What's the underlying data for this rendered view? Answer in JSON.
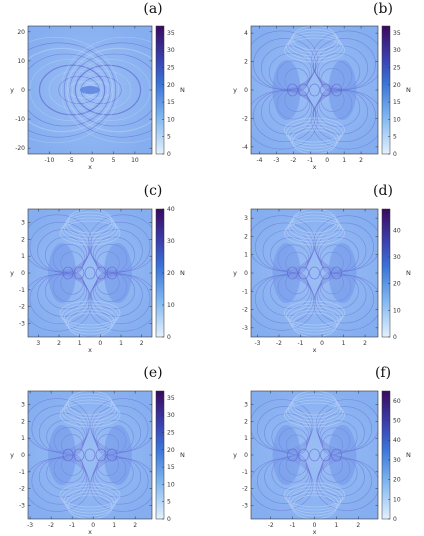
{
  "chart_data": [
    {
      "type": "heatmap",
      "panel_label": "(a)",
      "xlabel": "x",
      "ylabel": "y",
      "xlim": [
        -15,
        14
      ],
      "ylim": [
        -22,
        22
      ],
      "xticks": [
        -10,
        -5,
        0,
        5,
        10
      ],
      "yticks": [
        -20,
        -10,
        0,
        10,
        20
      ],
      "colorbar": {
        "label": "N",
        "min": 0,
        "max": 37,
        "ticks": [
          0,
          5,
          10,
          15,
          20,
          25,
          30,
          35
        ]
      }
    },
    {
      "type": "heatmap",
      "panel_label": "(b)",
      "xlabel": "x",
      "ylabel": "y",
      "xlim": [
        -4.5,
        3
      ],
      "ylim": [
        -4.5,
        4.5
      ],
      "xticks": [
        -4,
        -3,
        -2,
        -1,
        0,
        1,
        2
      ],
      "yticks": [
        -4,
        -2,
        0,
        2,
        4
      ],
      "colorbar": {
        "label": "N",
        "min": 0,
        "max": 37,
        "ticks": [
          0,
          5,
          10,
          15,
          20,
          25,
          30,
          35
        ]
      }
    },
    {
      "type": "heatmap",
      "panel_label": "(c)",
      "xlabel": "x",
      "ylabel": "y",
      "xlim": [
        -3.5,
        2.5
      ],
      "ylim": [
        -3.8,
        3.8
      ],
      "xticks": [
        -3,
        -2,
        -1,
        0,
        1,
        2
      ],
      "xticklabels": [
        "3",
        "2",
        "1",
        "0",
        "1",
        "2"
      ],
      "yticks": [
        -3,
        -2,
        -1,
        0,
        1,
        2,
        3
      ],
      "colorbar": {
        "label": "N",
        "min": 0,
        "max": 40,
        "ticks": [
          0,
          10,
          20,
          30,
          40
        ]
      }
    },
    {
      "type": "heatmap",
      "panel_label": "(d)",
      "xlabel": "x",
      "ylabel": "y",
      "xlim": [
        -3.3,
        2.6
      ],
      "ylim": [
        -3.5,
        3.5
      ],
      "xticks": [
        -3,
        -2,
        -1,
        0,
        1,
        2
      ],
      "yticks": [
        -3,
        -2,
        -1,
        0,
        1,
        2,
        3
      ],
      "colorbar": {
        "label": "N",
        "min": 0,
        "max": 48,
        "ticks": [
          0,
          10,
          20,
          30,
          40
        ]
      }
    },
    {
      "type": "heatmap",
      "panel_label": "(e)",
      "xlabel": "x",
      "ylabel": "y",
      "xlim": [
        -3.1,
        2.8
      ],
      "ylim": [
        -3.8,
        3.8
      ],
      "xticks": [
        -3,
        -2,
        -1,
        0,
        1,
        2
      ],
      "yticks": [
        -3,
        -2,
        -1,
        0,
        1,
        2,
        3
      ],
      "colorbar": {
        "label": "N",
        "min": 0,
        "max": 37,
        "ticks": [
          0,
          5,
          10,
          15,
          20,
          25,
          30,
          35
        ]
      }
    },
    {
      "type": "heatmap",
      "panel_label": "(f)",
      "xlabel": "x",
      "ylabel": "y",
      "xlim": [
        -2.9,
        2.9
      ],
      "ylim": [
        -3.8,
        3.8
      ],
      "xticks": [
        -2,
        -1,
        0,
        1,
        2
      ],
      "yticks": [
        -3,
        -2,
        -1,
        0,
        1,
        2,
        3
      ],
      "colorbar": {
        "label": "N",
        "min": 0,
        "max": 65,
        "ticks": [
          0,
          10,
          20,
          30,
          40,
          50,
          60
        ]
      }
    }
  ],
  "colors": {
    "background_field": "#8fb6f2",
    "field_light": "#b8d2f8",
    "field_dark": "#4f6fd8",
    "ridge": "#5a55c8",
    "colormap_low": "#d9ecfd",
    "colormap_mid": "#3c82e0",
    "colormap_high": "#3d0a63"
  }
}
